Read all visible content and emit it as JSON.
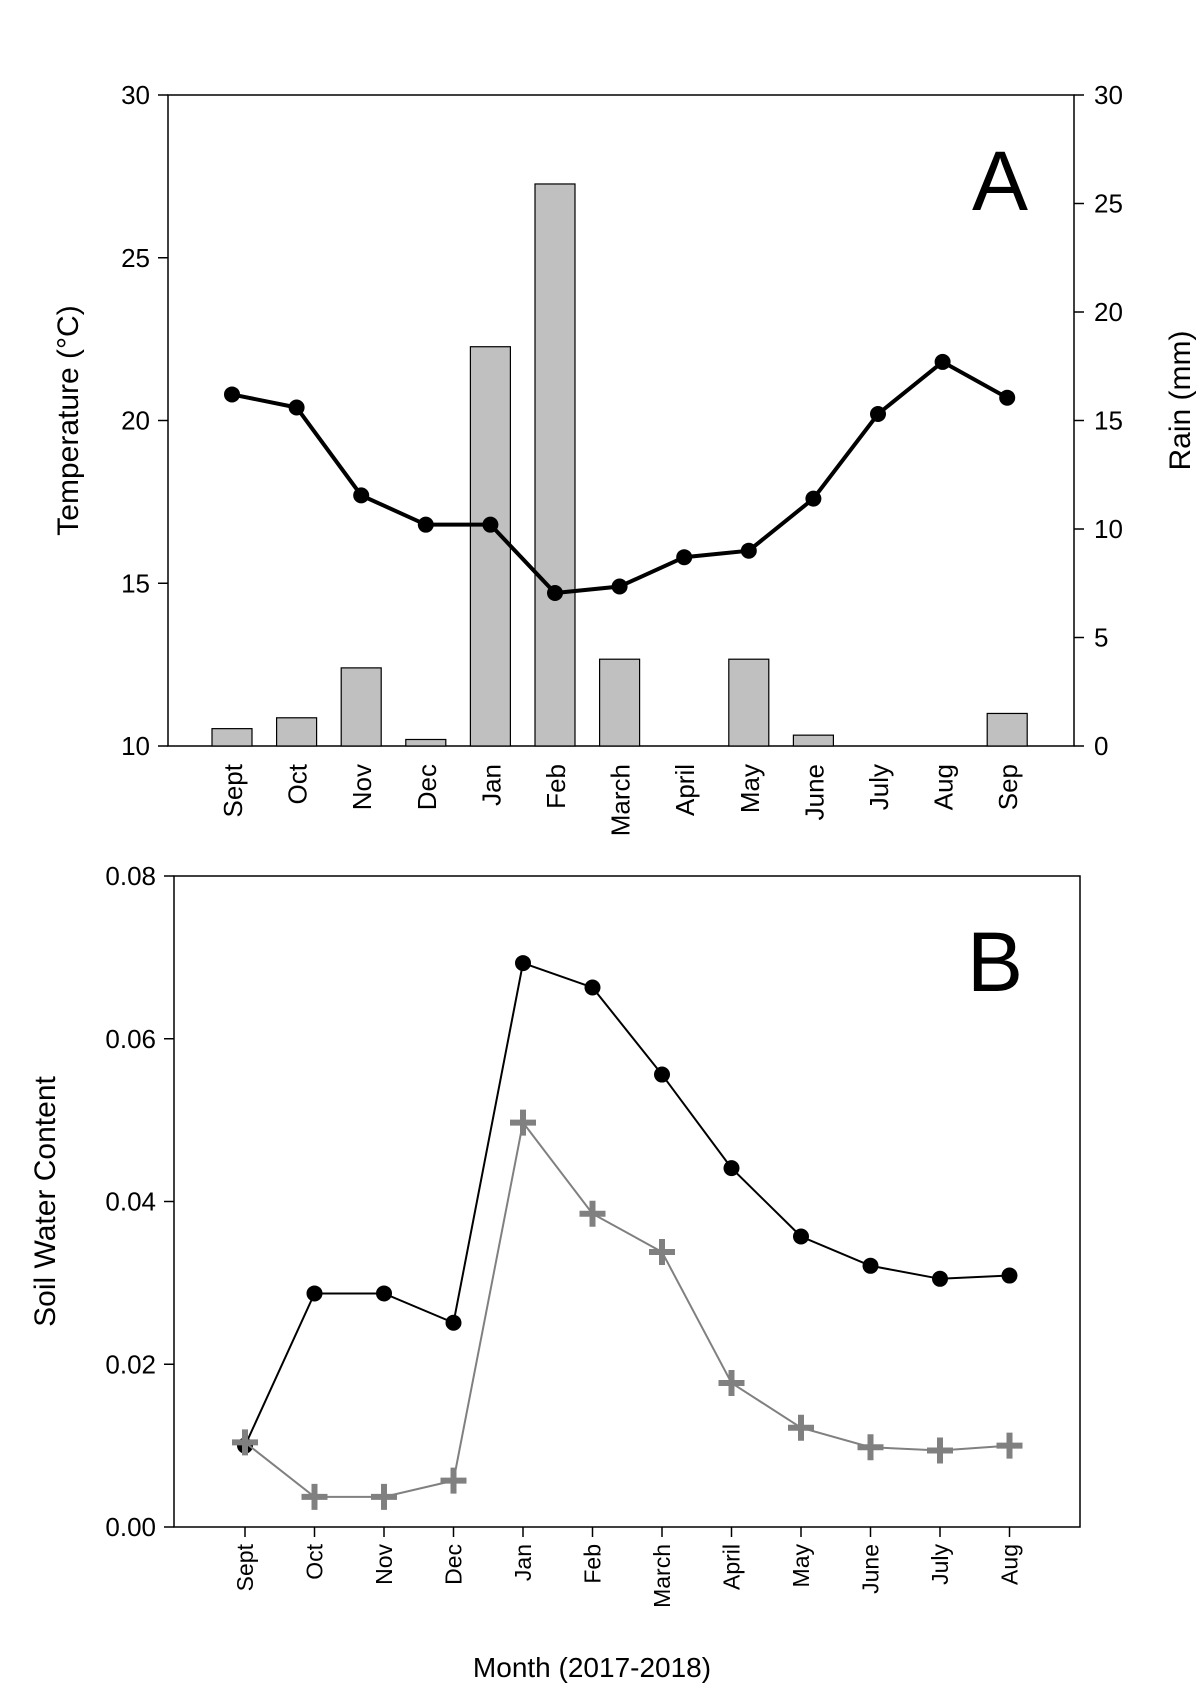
{
  "chart_data": [
    {
      "panel": "A",
      "type": "bar+line",
      "panel_label": "A",
      "categories": [
        "Sept",
        "Oct",
        "Nov",
        "Dec",
        "Jan",
        "Feb",
        "March",
        "April",
        "May",
        "June",
        "July",
        "Aug",
        "Sep"
      ],
      "ylabel_left": "Temperature (°C)",
      "ylabel_right": "Rain (mm)",
      "ylim_left": [
        10,
        30
      ],
      "ylim_right": [
        0,
        30
      ],
      "yticks_left": [
        "10",
        "15",
        "20",
        "25",
        "30"
      ],
      "yticks_right": [
        "0",
        "5",
        "10",
        "15",
        "20",
        "25",
        "30"
      ],
      "bar_color": "#c0c0c0",
      "line_color": "#000000",
      "series": [
        {
          "name": "Rain (mm)",
          "kind": "bar",
          "axis": "right",
          "values": [
            0.8,
            1.3,
            3.6,
            0.3,
            18.4,
            25.9,
            4.0,
            0,
            4.0,
            0.5,
            0,
            0,
            1.5
          ]
        },
        {
          "name": "Temperature (°C)",
          "kind": "line",
          "axis": "left",
          "values": [
            20.8,
            20.4,
            17.7,
            16.8,
            16.8,
            14.7,
            14.9,
            15.8,
            16.0,
            17.6,
            20.2,
            21.8,
            20.7
          ]
        }
      ]
    },
    {
      "panel": "B",
      "type": "line",
      "panel_label": "B",
      "categories": [
        "Sept",
        "Oct",
        "Nov",
        "Dec",
        "Jan",
        "Feb",
        "March",
        "April",
        "May",
        "June",
        "July",
        "Aug"
      ],
      "ylabel": "Soil Water Content",
      "xlabel": "Month (2017-2018)",
      "ylim": [
        0,
        0.08
      ],
      "yticks": [
        "0.00",
        "0.02",
        "0.04",
        "0.06",
        "0.08"
      ],
      "series": [
        {
          "name": "circles",
          "marker": "circle",
          "color": "#000000",
          "values": [
            0.01,
            0.0287,
            0.0287,
            0.0251,
            0.0693,
            0.0663,
            0.0556,
            0.0441,
            0.0357,
            0.0321,
            0.0305,
            0.0309
          ]
        },
        {
          "name": "crosses",
          "marker": "cross",
          "color": "#808080",
          "values": [
            0.0104,
            0.0037,
            0.0037,
            0.0057,
            0.0497,
            0.0385,
            0.0338,
            0.0177,
            0.0122,
            0.0098,
            0.0094,
            0.01
          ]
        }
      ]
    }
  ]
}
